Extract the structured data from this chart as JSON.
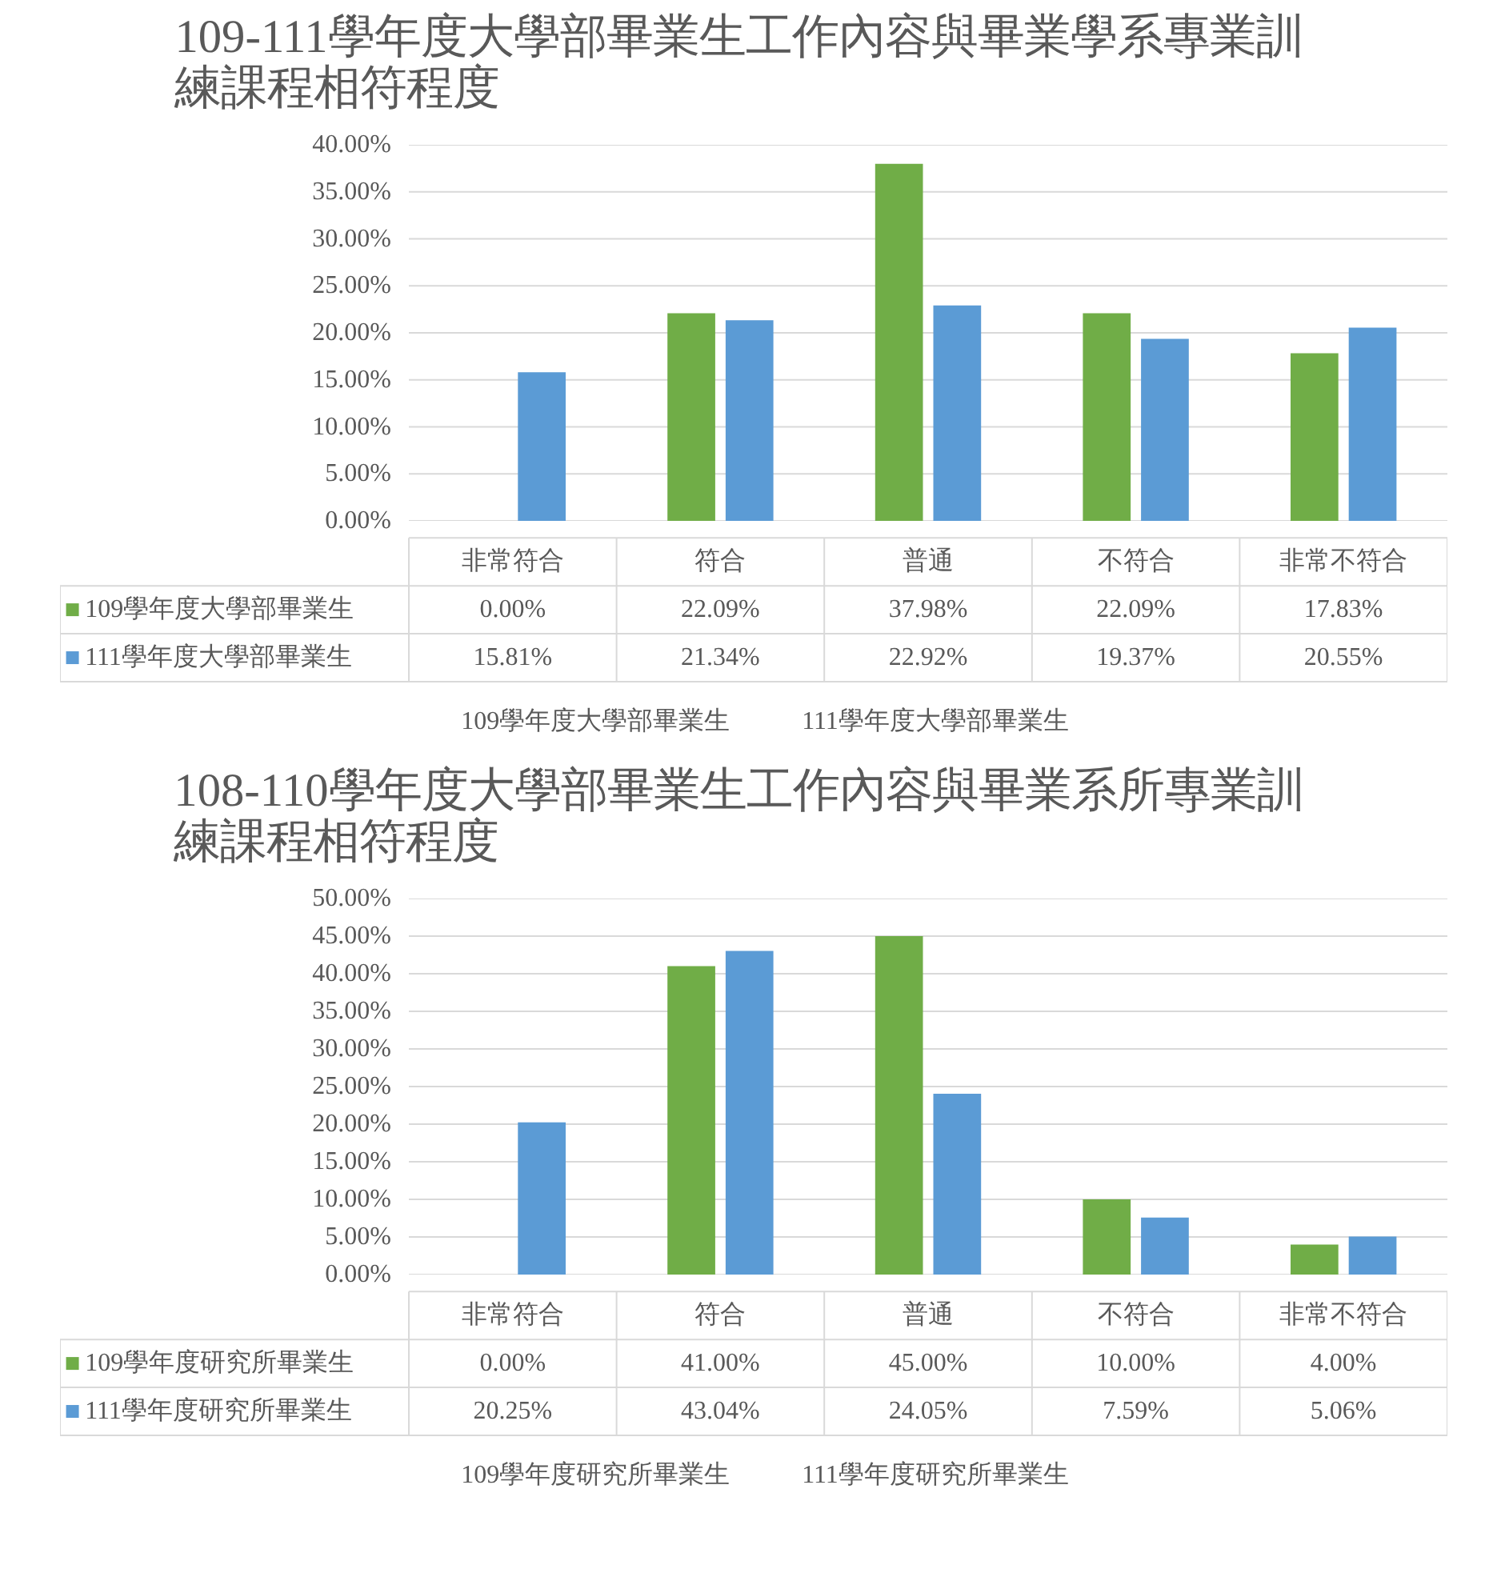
{
  "chart_data": [
    {
      "type": "bar",
      "title": "109-111學年度大學部畢業生工作內容與畢業學系專業訓練課程相符程度",
      "categories": [
        "非常符合",
        "符合",
        "普通",
        "不符合",
        "非常不符合"
      ],
      "series": [
        {
          "name": "109學年度大學部畢業生",
          "color": "#70ad47",
          "values": [
            0.0,
            22.09,
            37.98,
            22.09,
            17.83
          ],
          "value_labels": [
            "0.00%",
            "22.09%",
            "37.98%",
            "22.09%",
            "17.83%"
          ]
        },
        {
          "name": "111學年度大學部畢業生",
          "color": "#5b9bd5",
          "values": [
            15.81,
            21.34,
            22.92,
            19.37,
            20.55
          ],
          "value_labels": [
            "15.81%",
            "21.34%",
            "22.92%",
            "19.37%",
            "20.55%"
          ]
        }
      ],
      "ylim": [
        0,
        40
      ],
      "yticks": [
        {
          "value": 0,
          "label": "0.00%"
        },
        {
          "value": 5,
          "label": "5.00%"
        },
        {
          "value": 10,
          "label": "10.00%"
        },
        {
          "value": 15,
          "label": "15.00%"
        },
        {
          "value": 20,
          "label": "20.00%"
        },
        {
          "value": 25,
          "label": "25.00%"
        },
        {
          "value": 30,
          "label": "30.00%"
        },
        {
          "value": 35,
          "label": "35.00%"
        },
        {
          "value": 40,
          "label": "40.00%"
        }
      ],
      "grid": "y",
      "legend": "bottom",
      "tick_labels": "y"
    },
    {
      "type": "bar",
      "title": "108-110學年度大學部畢業生工作內容與畢業系所專業訓練課程相符程度",
      "categories": [
        "非常符合",
        "符合",
        "普通",
        "不符合",
        "非常不符合"
      ],
      "series": [
        {
          "name": "109學年度研究所畢業生",
          "color": "#70ad47",
          "values": [
            0.0,
            41.0,
            45.0,
            10.0,
            4.0
          ],
          "value_labels": [
            "0.00%",
            "41.00%",
            "45.00%",
            "10.00%",
            "4.00%"
          ]
        },
        {
          "name": "111學年度研究所畢業生",
          "color": "#5b9bd5",
          "values": [
            20.25,
            43.04,
            24.05,
            7.59,
            5.06
          ],
          "value_labels": [
            "20.25%",
            "43.04%",
            "24.05%",
            "7.59%",
            "5.06%"
          ]
        }
      ],
      "ylim": [
        0,
        50
      ],
      "yticks": [
        {
          "value": 0,
          "label": "0.00%"
        },
        {
          "value": 5,
          "label": "5.00%"
        },
        {
          "value": 10,
          "label": "10.00%"
        },
        {
          "value": 15,
          "label": "15.00%"
        },
        {
          "value": 20,
          "label": "20.00%"
        },
        {
          "value": 25,
          "label": "25.00%"
        },
        {
          "value": 30,
          "label": "30.00%"
        },
        {
          "value": 35,
          "label": "35.00%"
        },
        {
          "value": 40,
          "label": "40.00%"
        },
        {
          "value": 45,
          "label": "45.00%"
        },
        {
          "value": 50,
          "label": "50.00%"
        }
      ],
      "grid": "y",
      "legend": "bottom",
      "tick_labels": "y"
    }
  ]
}
